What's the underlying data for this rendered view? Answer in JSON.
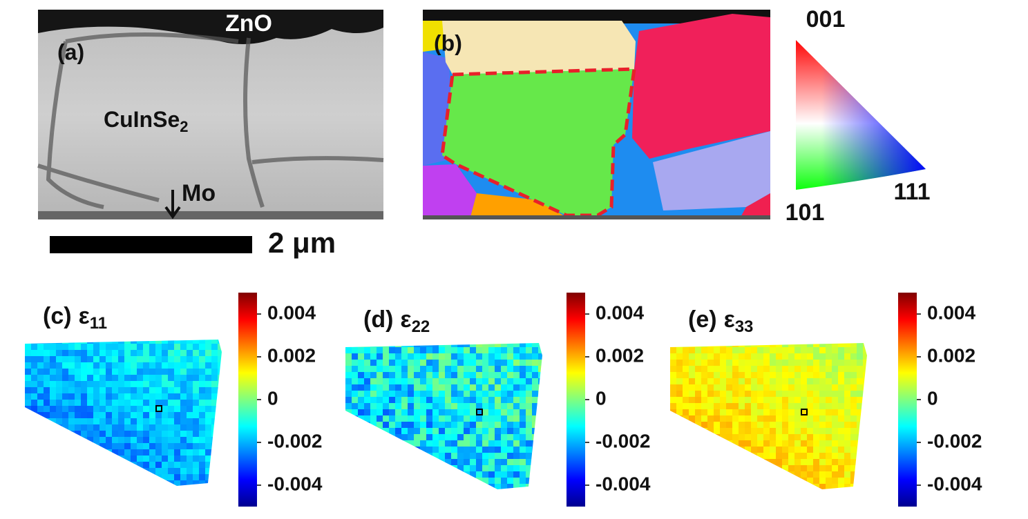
{
  "panel_a": {
    "label": "(a)",
    "top_layer": "ZnO",
    "grain": {
      "text": "CuInSe",
      "subscript": "2"
    },
    "bottom_layer": "Mo",
    "scale_bar": "2 μm"
  },
  "panel_b": {
    "label": "(b)",
    "legend": {
      "top": "001",
      "left": "101",
      "right": "111"
    }
  },
  "strain_maps": [
    {
      "letter": "(c)",
      "symbol": "ε",
      "subscript": "11"
    },
    {
      "letter": "(d)",
      "symbol": "ε",
      "subscript": "22"
    },
    {
      "letter": "(e)",
      "symbol": "ε",
      "subscript": "33"
    }
  ],
  "colorbar": {
    "range": [
      -0.005,
      0.005
    ],
    "ticks": [
      0.004,
      0.002,
      0,
      -0.002,
      -0.004
    ]
  }
}
